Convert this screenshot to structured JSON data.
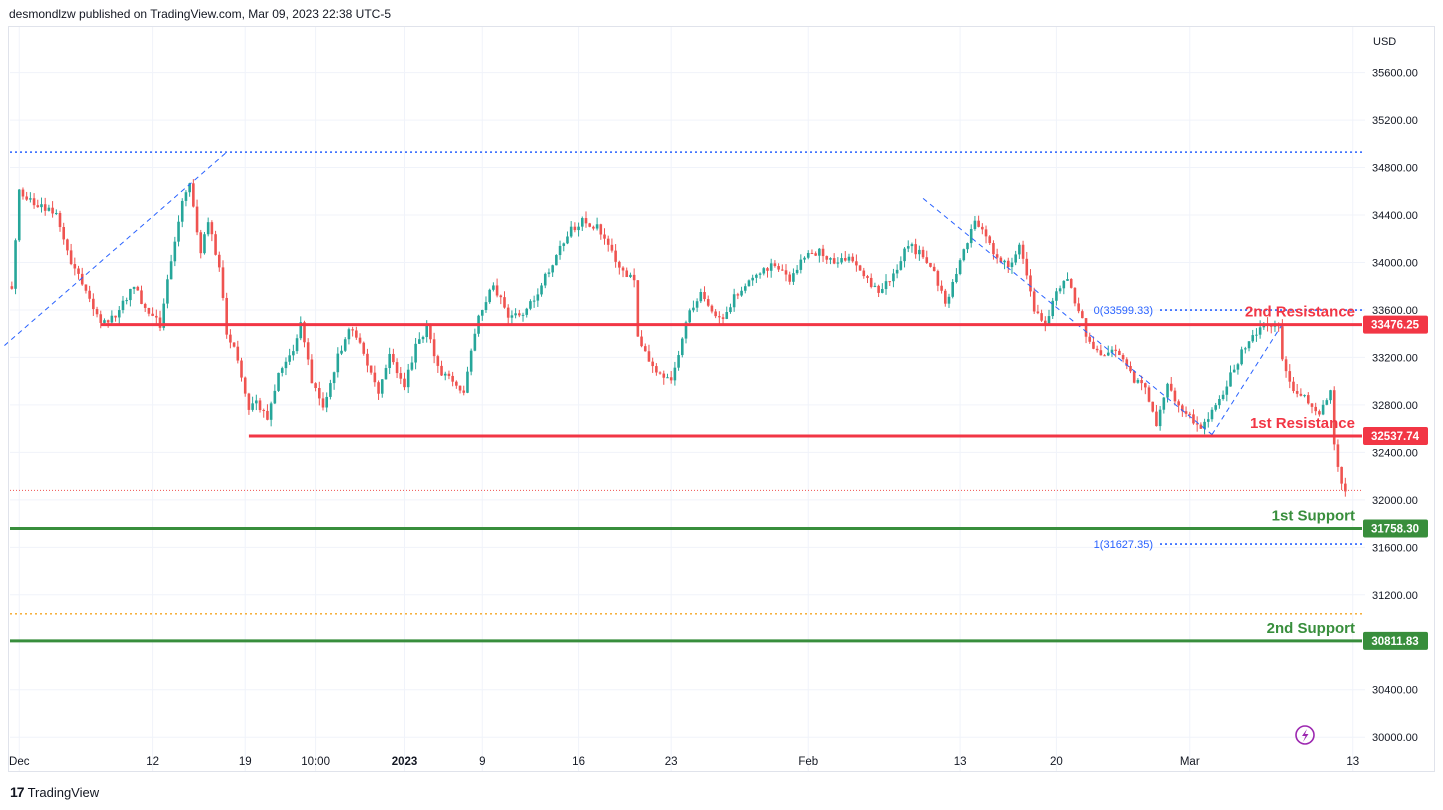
{
  "header": {
    "text": "desmondlzw published on TradingView.com, Mar 09, 2023 22:38 UTC-5"
  },
  "footer": {
    "brand": "TradingView",
    "logo_glyph": "17"
  },
  "colors": {
    "up": "#26a69a",
    "down": "#ef5350",
    "resistance": "#f23645",
    "support": "#388e3c",
    "fib": "#2962ff",
    "fib_text": "#2962ff",
    "orange_dotted": "#f5a623",
    "price_dotted": "#ef5350",
    "axis_text": "#131722",
    "lightning": "#9c27b0"
  },
  "chart_data": {
    "type": "candlestick",
    "currency_label": "USD",
    "ylim": [
      29850,
      35900
    ],
    "y_ticks": [
      {
        "value": 35600,
        "label": "35600.00"
      },
      {
        "value": 35200,
        "label": "35200.00"
      },
      {
        "value": 34800,
        "label": "34800.00"
      },
      {
        "value": 34400,
        "label": "34400.00"
      },
      {
        "value": 34000,
        "label": "34000.00"
      },
      {
        "value": 33600,
        "label": "33600.00"
      },
      {
        "value": 33200,
        "label": "33200.00"
      },
      {
        "value": 32800,
        "label": "32800.00"
      },
      {
        "value": 32400,
        "label": "32400.00"
      },
      {
        "value": 32000,
        "label": "32000.00"
      },
      {
        "value": 31600,
        "label": "31600.00"
      },
      {
        "value": 31200,
        "label": "31200.00"
      },
      {
        "value": 30400,
        "label": "30400.00"
      },
      {
        "value": 30000,
        "label": "30000.00"
      }
    ],
    "x_ticks": [
      {
        "bar": 2,
        "label": "Dec",
        "bold": false
      },
      {
        "bar": 38,
        "label": "12",
        "bold": false
      },
      {
        "bar": 63,
        "label": "19",
        "bold": false
      },
      {
        "bar": 82,
        "label": "10:00",
        "bold": false
      },
      {
        "bar": 106,
        "label": "2023",
        "bold": true
      },
      {
        "bar": 127,
        "label": "9",
        "bold": false
      },
      {
        "bar": 153,
        "label": "16",
        "bold": false
      },
      {
        "bar": 178,
        "label": "23",
        "bold": false
      },
      {
        "bar": 215,
        "label": "Feb",
        "bold": false
      },
      {
        "bar": 256,
        "label": "13",
        "bold": false
      },
      {
        "bar": 282,
        "label": "20",
        "bold": false
      },
      {
        "bar": 318,
        "label": "Mar",
        "bold": false
      },
      {
        "bar": 362,
        "label": "13",
        "bold": false
      }
    ],
    "bar_count": 365,
    "keypoints": [
      [
        0,
        33800
      ],
      [
        2,
        34620
      ],
      [
        6,
        34480
      ],
      [
        12,
        34420
      ],
      [
        16,
        34000
      ],
      [
        20,
        33780
      ],
      [
        24,
        33500
      ],
      [
        28,
        33550
      ],
      [
        33,
        33800
      ],
      [
        36,
        33600
      ],
      [
        40,
        33480
      ],
      [
        43,
        34000
      ],
      [
        46,
        34500
      ],
      [
        48,
        34650
      ],
      [
        51,
        34100
      ],
      [
        53,
        34350
      ],
      [
        56,
        33950
      ],
      [
        58,
        33400
      ],
      [
        61,
        33200
      ],
      [
        64,
        32750
      ],
      [
        66,
        32850
      ],
      [
        69,
        32650
      ],
      [
        72,
        33100
      ],
      [
        76,
        33250
      ],
      [
        78,
        33480
      ],
      [
        81,
        33000
      ],
      [
        84,
        32750
      ],
      [
        88,
        33200
      ],
      [
        91,
        33450
      ],
      [
        95,
        33250
      ],
      [
        99,
        32900
      ],
      [
        102,
        33200
      ],
      [
        106,
        32950
      ],
      [
        109,
        33300
      ],
      [
        112,
        33450
      ],
      [
        115,
        33100
      ],
      [
        119,
        33000
      ],
      [
        122,
        32920
      ],
      [
        126,
        33550
      ],
      [
        130,
        33800
      ],
      [
        134,
        33550
      ],
      [
        138,
        33550
      ],
      [
        142,
        33750
      ],
      [
        146,
        34000
      ],
      [
        150,
        34250
      ],
      [
        154,
        34350
      ],
      [
        158,
        34300
      ],
      [
        162,
        34100
      ],
      [
        165,
        33900
      ],
      [
        168,
        33850
      ],
      [
        169,
        33400
      ],
      [
        172,
        33150
      ],
      [
        176,
        33050
      ],
      [
        178,
        33000
      ],
      [
        181,
        33350
      ],
      [
        183,
        33600
      ],
      [
        186,
        33750
      ],
      [
        189,
        33600
      ],
      [
        192,
        33500
      ],
      [
        195,
        33700
      ],
      [
        198,
        33800
      ],
      [
        202,
        33900
      ],
      [
        206,
        34000
      ],
      [
        210,
        33850
      ],
      [
        214,
        34050
      ],
      [
        218,
        34100
      ],
      [
        222,
        34000
      ],
      [
        226,
        34050
      ],
      [
        230,
        33900
      ],
      [
        234,
        33750
      ],
      [
        238,
        33900
      ],
      [
        242,
        34150
      ],
      [
        246,
        34050
      ],
      [
        249,
        33900
      ],
      [
        252,
        33650
      ],
      [
        256,
        34000
      ],
      [
        260,
        34350
      ],
      [
        263,
        34200
      ],
      [
        266,
        34050
      ],
      [
        269,
        33950
      ],
      [
        272,
        34150
      ],
      [
        276,
        33600
      ],
      [
        279,
        33480
      ],
      [
        282,
        33750
      ],
      [
        285,
        33850
      ],
      [
        288,
        33600
      ],
      [
        291,
        33300
      ],
      [
        294,
        33200
      ],
      [
        297,
        33250
      ],
      [
        300,
        33200
      ],
      [
        303,
        33000
      ],
      [
        306,
        32950
      ],
      [
        309,
        32650
      ],
      [
        312,
        32950
      ],
      [
        315,
        32800
      ],
      [
        318,
        32700
      ],
      [
        321,
        32620
      ],
      [
        323,
        32700
      ],
      [
        326,
        32850
      ],
      [
        329,
        33050
      ],
      [
        333,
        33300
      ],
      [
        336,
        33420
      ],
      [
        339,
        33500
      ],
      [
        342,
        33460
      ],
      [
        343,
        33200
      ],
      [
        346,
        32900
      ],
      [
        349,
        32850
      ],
      [
        351,
        32800
      ],
      [
        353,
        32750
      ],
      [
        356,
        32900
      ],
      [
        357,
        32500
      ],
      [
        358,
        32250
      ],
      [
        359,
        32150
      ],
      [
        360,
        32090
      ]
    ],
    "reference_lines": [
      {
        "name": "2nd Resistance",
        "price": 33476.25,
        "price_label": "33476.25",
        "start_bar": 24,
        "kind": "resistance"
      },
      {
        "name": "1st Resistance",
        "price": 32537.74,
        "price_label": "32537.74",
        "start_bar": 64,
        "kind": "resistance"
      },
      {
        "name": "1st Support",
        "price": 31758.3,
        "price_label": "31758.30",
        "start_bar": 0,
        "kind": "support"
      },
      {
        "name": "2nd Support",
        "price": 30811.83,
        "price_label": "30811.83",
        "start_bar": 0,
        "kind": "support"
      }
    ],
    "fib_levels": [
      {
        "label": "0(33599.33)",
        "price": 33599.33
      },
      {
        "label": "1(31627.35)",
        "price": 31627.35
      }
    ],
    "top_dotted_level": 34930,
    "orange_dotted_level": 31040,
    "current_price_dotted": 32080,
    "trend_lines": [
      {
        "from_bar": -2,
        "from_price": 33300,
        "to_bar": 58,
        "to_price": 34930
      },
      {
        "from_bar": 246,
        "from_price": 34540,
        "to_bar": 324,
        "to_price": 32550
      },
      {
        "from_bar": 324,
        "from_price": 32550,
        "to_bar": 343,
        "to_price": 33480
      }
    ]
  }
}
